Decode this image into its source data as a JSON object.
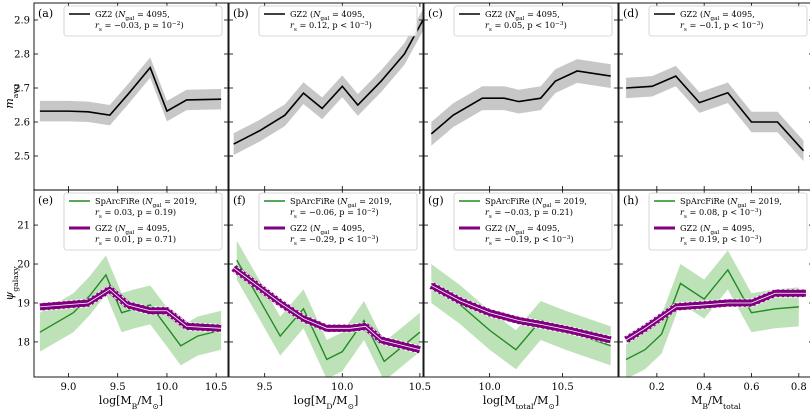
{
  "chart_data": {
    "type": "line",
    "colors": {
      "gz2_top": "#000000",
      "gz2_band_top": "#999999",
      "sparcfire": "#228b22",
      "sparcfire_band": "#a8d8a0",
      "gz2_bottom": "#800080",
      "gz2_bottom_edge": "#ffffff"
    },
    "rows": [
      {
        "ylabel": "m_avg",
        "ylim": [
          2.4,
          2.95
        ],
        "yticks": [
          2.5,
          2.6,
          2.7,
          2.8,
          2.9
        ],
        "yticklabels": [
          "2.5",
          "2.6",
          "2.7",
          "2.8",
          "2.9"
        ]
      },
      {
        "ylabel": "ψ_galaxy",
        "ylim": [
          17.1,
          21.9
        ],
        "yticks": [
          18,
          19,
          20,
          21
        ],
        "yticklabels": [
          "18",
          "19",
          "20",
          "21"
        ]
      }
    ],
    "columns": [
      {
        "xlabel_main": "log[M",
        "xlabel_sub": "B",
        "xlabel_rest": "/M",
        "xlabel_sun": "⊙",
        "xlabel_end": "]",
        "xlim": [
          8.65,
          10.62
        ],
        "xticks": [
          9.0,
          9.5,
          10.0,
          10.5
        ],
        "xticklabels": [
          "9.0",
          "9.5",
          "10.0",
          "10.5"
        ]
      },
      {
        "xlabel_main": "log[M",
        "xlabel_sub": "D",
        "xlabel_rest": "/M",
        "xlabel_sun": "⊙",
        "xlabel_end": "]",
        "xlim": [
          9.27,
          10.52
        ],
        "xticks": [
          9.5,
          10.0,
          10.5
        ],
        "xticklabels": [
          "9.5",
          "10.0",
          "10.5"
        ]
      },
      {
        "xlabel_main": "log[M",
        "xlabel_sub": "total",
        "xlabel_rest": "/M",
        "xlabel_sun": "⊙",
        "xlabel_end": "]",
        "xlim": [
          9.55,
          10.88
        ],
        "xticks": [
          10.0,
          10.5
        ],
        "xticklabels": [
          "10.0",
          "10.5"
        ]
      },
      {
        "xlabel_main": "M",
        "xlabel_sub": "B",
        "xlabel_rest": "/M",
        "xlabel_sun": "",
        "xlabel_end": "",
        "xlabel_sub2": "total",
        "xlim": [
          0.04,
          0.86
        ],
        "xticks": [
          0.2,
          0.4,
          0.6,
          0.8
        ],
        "xticklabels": [
          "0.2",
          "0.4",
          "0.6",
          "0.8"
        ]
      }
    ],
    "panels": [
      {
        "label": "(a)",
        "row": 0,
        "col": 0,
        "series": [
          {
            "name": "GZ2",
            "line1": "GZ2 (N_gal = 4095,",
            "line2": "r_s = −0.03, p = 10^−2)",
            "x": [
              8.71,
              9.0,
              9.2,
              9.42,
              9.6,
              9.83,
              10.0,
              10.2,
              10.55
            ],
            "y": [
              2.632,
              2.632,
              2.63,
              2.62,
              2.68,
              2.76,
              2.632,
              2.665,
              2.667
            ],
            "err": [
              0.03,
              0.03,
              0.03,
              0.03,
              0.03,
              0.03,
              0.03,
              0.03,
              0.03
            ]
          }
        ]
      },
      {
        "label": "(b)",
        "row": 0,
        "col": 1,
        "series": [
          {
            "name": "GZ2",
            "line1": "GZ2 (N_gal = 4095,",
            "line2": "r_s = 0.12, p < 10^−3)",
            "x": [
              9.3,
              9.47,
              9.63,
              9.75,
              9.87,
              10.0,
              10.1,
              10.25,
              10.4,
              10.52
            ],
            "y": [
              2.535,
              2.575,
              2.62,
              2.685,
              2.64,
              2.705,
              2.65,
              2.72,
              2.8,
              2.9
            ],
            "err": [
              0.032,
              0.032,
              0.032,
              0.032,
              0.032,
              0.032,
              0.032,
              0.032,
              0.032,
              0.032
            ]
          }
        ]
      },
      {
        "label": "(c)",
        "row": 0,
        "col": 2,
        "series": [
          {
            "name": "GZ2",
            "line1": "GZ2 (N_gal = 4095,",
            "line2": "r_s = 0.05, p < 10^−3)",
            "x": [
              9.6,
              9.75,
              9.95,
              10.1,
              10.2,
              10.35,
              10.45,
              10.6,
              10.83
            ],
            "y": [
              2.565,
              2.62,
              2.67,
              2.67,
              2.66,
              2.67,
              2.72,
              2.75,
              2.735
            ],
            "err": [
              0.035,
              0.035,
              0.035,
              0.035,
              0.035,
              0.035,
              0.035,
              0.035,
              0.035
            ]
          }
        ]
      },
      {
        "label": "(d)",
        "row": 0,
        "col": 3,
        "series": [
          {
            "name": "GZ2",
            "line1": "GZ2 (N_gal = 4095,",
            "line2": "r_s = −0.1, p < 10^−3)",
            "x": [
              0.07,
              0.18,
              0.28,
              0.38,
              0.5,
              0.6,
              0.71,
              0.82
            ],
            "y": [
              2.7,
              2.705,
              2.735,
              2.657,
              2.686,
              2.6,
              2.6,
              2.515
            ],
            "err": [
              0.03,
              0.03,
              0.03,
              0.03,
              0.03,
              0.03,
              0.03,
              0.03
            ]
          }
        ]
      },
      {
        "label": "(e)",
        "row": 1,
        "col": 0,
        "series": [
          {
            "name": "SpArcFiRe",
            "kind": "sparcfire",
            "line1": "SpArcFiRe (N_gal = 2019,",
            "line2": "r_s = 0.03, p = 0.19)",
            "x": [
              8.71,
              9.05,
              9.22,
              9.38,
              9.54,
              9.67,
              9.83,
              9.98,
              10.14,
              10.31,
              10.55
            ],
            "y": [
              18.25,
              18.75,
              19.2,
              19.72,
              18.75,
              18.85,
              18.95,
              18.45,
              17.9,
              18.15,
              18.3
            ],
            "err": [
              0.5,
              0.5,
              0.5,
              0.5,
              0.5,
              0.5,
              0.5,
              0.5,
              0.5,
              0.5,
              0.5
            ]
          },
          {
            "name": "GZ2",
            "kind": "gz2",
            "line1": "GZ2 (N_gal = 4095,",
            "line2": "r_s = 0.01, p = 0.71)",
            "x": [
              8.71,
              9.2,
              9.42,
              9.6,
              9.83,
              10.0,
              10.2,
              10.55
            ],
            "y": [
              18.9,
              19.0,
              19.35,
              18.95,
              18.8,
              18.8,
              18.4,
              18.35
            ],
            "err": [
              0.1,
              0.1,
              0.1,
              0.1,
              0.1,
              0.1,
              0.1,
              0.1
            ]
          }
        ]
      },
      {
        "label": "(f)",
        "row": 1,
        "col": 1,
        "series": [
          {
            "name": "SpArcFiRe",
            "kind": "sparcfire",
            "line1": "SpArcFiRe (N_gal = 2019,",
            "line2": "r_s = −0.06, p = 10^−2)",
            "x": [
              9.32,
              9.45,
              9.6,
              9.75,
              9.9,
              10.0,
              10.14,
              10.27,
              10.5
            ],
            "y": [
              20.1,
              19.2,
              18.15,
              18.85,
              17.55,
              17.75,
              18.55,
              17.5,
              18.25
            ],
            "err": [
              0.5,
              0.5,
              0.5,
              0.5,
              0.5,
              0.5,
              0.5,
              0.5,
              0.5
            ]
          },
          {
            "name": "GZ2",
            "kind": "gz2",
            "line1": "GZ2 (N_gal = 4095,",
            "line2": "r_s = −0.29, p < 10^−3)",
            "x": [
              9.3,
              9.45,
              9.6,
              9.75,
              9.9,
              10.05,
              10.15,
              10.25,
              10.5
            ],
            "y": [
              19.9,
              19.45,
              19.0,
              18.6,
              18.35,
              18.35,
              18.4,
              18.05,
              17.8
            ],
            "err": [
              0.1,
              0.1,
              0.1,
              0.1,
              0.1,
              0.1,
              0.1,
              0.1,
              0.1
            ]
          }
        ]
      },
      {
        "label": "(g)",
        "row": 1,
        "col": 2,
        "series": [
          {
            "name": "SpArcFiRe",
            "kind": "sparcfire",
            "line1": "SpArcFiRe (N_gal = 2019,",
            "line2": "r_s = −0.03, p = 0.21)",
            "x": [
              9.6,
              9.8,
              10.0,
              10.18,
              10.35,
              10.52,
              10.83
            ],
            "y": [
              19.5,
              18.95,
              18.3,
              17.8,
              18.55,
              18.3,
              17.9
            ],
            "err": [
              0.5,
              0.5,
              0.5,
              0.5,
              0.5,
              0.5,
              0.5
            ]
          },
          {
            "name": "GZ2",
            "kind": "gz2",
            "line1": "GZ2 (N_gal = 4095,",
            "line2": "r_s = −0.19, p < 10^−3)",
            "x": [
              9.6,
              9.8,
              10.0,
              10.2,
              10.35,
              10.55,
              10.83
            ],
            "y": [
              19.45,
              19.05,
              18.75,
              18.55,
              18.45,
              18.3,
              18.05
            ],
            "err": [
              0.1,
              0.1,
              0.1,
              0.1,
              0.1,
              0.1,
              0.1
            ]
          }
        ]
      },
      {
        "label": "(h)",
        "row": 1,
        "col": 3,
        "series": [
          {
            "name": "SpArcFiRe",
            "kind": "sparcfire",
            "line1": "SpArcFiRe (N_gal = 2019,",
            "line2": "r_s = 0.08, p < 10^−3)",
            "x": [
              0.07,
              0.15,
              0.22,
              0.3,
              0.4,
              0.5,
              0.6,
              0.7,
              0.8
            ],
            "y": [
              17.55,
              17.8,
              18.2,
              19.5,
              19.1,
              19.85,
              18.75,
              18.85,
              18.9
            ],
            "err": [
              0.5,
              0.5,
              0.5,
              0.5,
              0.5,
              0.5,
              0.5,
              0.5,
              0.5
            ]
          },
          {
            "name": "GZ2",
            "kind": "gz2",
            "line1": "GZ2 (N_gal = 4095,",
            "line2": "r_s = 0.19, p < 10^−3)",
            "x": [
              0.07,
              0.15,
              0.28,
              0.4,
              0.5,
              0.6,
              0.7,
              0.83
            ],
            "y": [
              18.05,
              18.35,
              18.9,
              18.95,
              19.0,
              19.0,
              19.25,
              19.25
            ],
            "err": [
              0.1,
              0.1,
              0.1,
              0.1,
              0.1,
              0.1,
              0.1,
              0.1
            ]
          }
        ]
      }
    ]
  }
}
